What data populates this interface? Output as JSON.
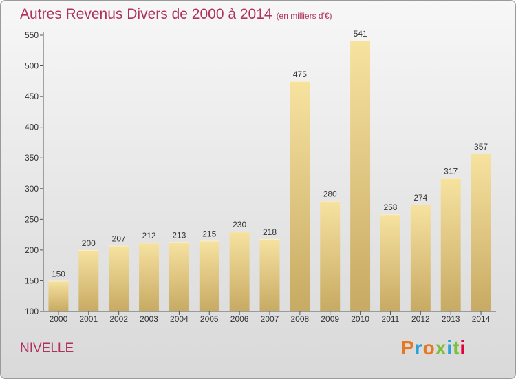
{
  "header": {
    "title": "Autres Revenus Divers de 2000 à 2014",
    "unit": "(en milliers d'€)"
  },
  "footer": {
    "commune": "NIVELLE",
    "logo_text": "Proxiti",
    "logo_colors": [
      "#e87722",
      "#2d9fd9",
      "#e87722",
      "#7cbf3a",
      "#2d9fd9",
      "#7cbf3a",
      "#e4003a"
    ]
  },
  "colors": {
    "title": "#b03060",
    "bar_light": "#f7e2a0",
    "bar_dark": "#c7aa63"
  },
  "chart_data": {
    "type": "bar",
    "categories": [
      "2000",
      "2001",
      "2002",
      "2003",
      "2004",
      "2005",
      "2006",
      "2007",
      "2008",
      "2009",
      "2010",
      "2011",
      "2012",
      "2013",
      "2014"
    ],
    "values": [
      150,
      200,
      207,
      212,
      213,
      215,
      230,
      218,
      475,
      280,
      541,
      258,
      274,
      317,
      357
    ],
    "ylim": [
      100,
      550
    ],
    "yticks": [
      100,
      150,
      200,
      250,
      300,
      350,
      400,
      450,
      500,
      550
    ],
    "grid": false,
    "xlabel": "",
    "ylabel": ""
  }
}
